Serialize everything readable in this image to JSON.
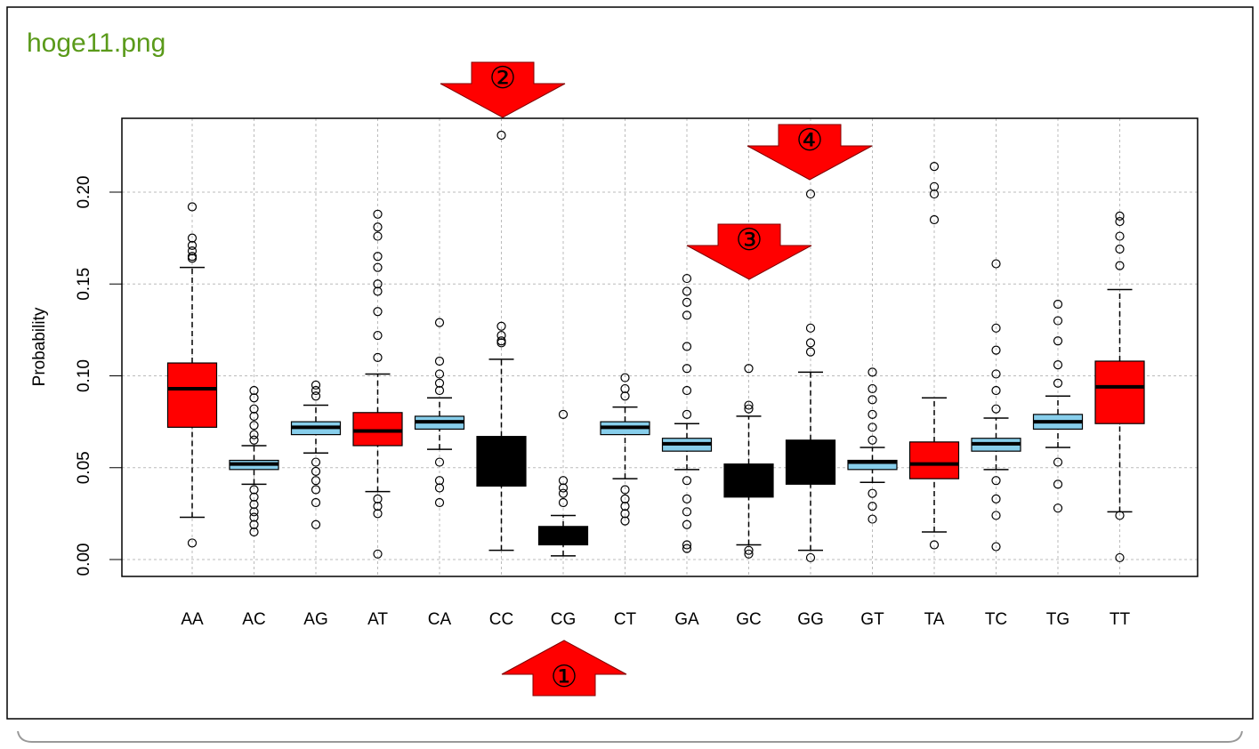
{
  "chart_data": {
    "type": "boxplot",
    "title": "hoge11.png",
    "y_label": "Probability",
    "categories": [
      "AA",
      "AC",
      "AG",
      "AT",
      "CA",
      "CC",
      "CG",
      "CT",
      "GA",
      "GC",
      "GG",
      "GT",
      "TA",
      "TC",
      "TG",
      "TT"
    ],
    "box_colors": [
      "#ff0000",
      "#87ceeb",
      "#87ceeb",
      "#ff0000",
      "#87ceeb",
      "#000000",
      "#000000",
      "#87ceeb",
      "#87ceeb",
      "#000000",
      "#000000",
      "#87ceeb",
      "#ff0000",
      "#87ceeb",
      "#87ceeb",
      "#ff0000"
    ],
    "stats": [
      {
        "low": 0.023,
        "q1": 0.072,
        "median": 0.093,
        "q3": 0.107,
        "high": 0.159,
        "outliers": [
          0.192,
          0.175,
          0.171,
          0.168,
          0.165,
          0.164,
          0.009
        ]
      },
      {
        "low": 0.041,
        "q1": 0.049,
        "median": 0.052,
        "q3": 0.054,
        "high": 0.062,
        "outliers": [
          0.092,
          0.088,
          0.082,
          0.078,
          0.073,
          0.068,
          0.065,
          0.038,
          0.034,
          0.03,
          0.026,
          0.023,
          0.019,
          0.015
        ]
      },
      {
        "low": 0.058,
        "q1": 0.068,
        "median": 0.072,
        "q3": 0.075,
        "high": 0.084,
        "outliers": [
          0.095,
          0.092,
          0.089,
          0.053,
          0.048,
          0.043,
          0.038,
          0.031,
          0.019
        ]
      },
      {
        "low": 0.037,
        "q1": 0.062,
        "median": 0.07,
        "q3": 0.08,
        "high": 0.101,
        "outliers": [
          0.11,
          0.122,
          0.135,
          0.146,
          0.15,
          0.159,
          0.165,
          0.176,
          0.181,
          0.188,
          0.033,
          0.029,
          0.025,
          0.003
        ]
      },
      {
        "low": 0.06,
        "q1": 0.071,
        "median": 0.075,
        "q3": 0.078,
        "high": 0.088,
        "outliers": [
          0.092,
          0.096,
          0.101,
          0.108,
          0.129,
          0.053,
          0.043,
          0.039,
          0.031
        ]
      },
      {
        "low": 0.005,
        "q1": 0.04,
        "median": 0.051,
        "q3": 0.067,
        "high": 0.109,
        "outliers": [
          0.127,
          0.122,
          0.119,
          0.118,
          0.231
        ]
      },
      {
        "low": 0.002,
        "q1": 0.008,
        "median": 0.012,
        "q3": 0.018,
        "high": 0.024,
        "outliers": [
          0.031,
          0.036,
          0.039,
          0.043,
          0.079
        ]
      },
      {
        "low": 0.044,
        "q1": 0.068,
        "median": 0.072,
        "q3": 0.075,
        "high": 0.083,
        "outliers": [
          0.089,
          0.093,
          0.099,
          0.038,
          0.033,
          0.029,
          0.025,
          0.021
        ]
      },
      {
        "low": 0.049,
        "q1": 0.059,
        "median": 0.063,
        "q3": 0.066,
        "high": 0.074,
        "outliers": [
          0.079,
          0.092,
          0.104,
          0.116,
          0.133,
          0.14,
          0.146,
          0.153,
          0.043,
          0.033,
          0.026,
          0.019,
          0.008,
          0.006
        ]
      },
      {
        "low": 0.008,
        "q1": 0.034,
        "median": 0.043,
        "q3": 0.052,
        "high": 0.078,
        "outliers": [
          0.084,
          0.082,
          0.104,
          0.005,
          0.003
        ]
      },
      {
        "low": 0.005,
        "q1": 0.041,
        "median": 0.053,
        "q3": 0.065,
        "high": 0.102,
        "outliers": [
          0.126,
          0.118,
          0.113,
          0.199,
          0.001
        ]
      },
      {
        "low": 0.042,
        "q1": 0.049,
        "median": 0.053,
        "q3": 0.054,
        "high": 0.061,
        "outliers": [
          0.065,
          0.072,
          0.079,
          0.087,
          0.093,
          0.102,
          0.036,
          0.029,
          0.022
        ]
      },
      {
        "low": 0.015,
        "q1": 0.044,
        "median": 0.052,
        "q3": 0.064,
        "high": 0.088,
        "outliers": [
          0.185,
          0.199,
          0.203,
          0.214,
          0.008
        ]
      },
      {
        "low": 0.049,
        "q1": 0.059,
        "median": 0.063,
        "q3": 0.066,
        "high": 0.077,
        "outliers": [
          0.082,
          0.092,
          0.101,
          0.114,
          0.126,
          0.161,
          0.043,
          0.033,
          0.024,
          0.007
        ]
      },
      {
        "low": 0.061,
        "q1": 0.071,
        "median": 0.075,
        "q3": 0.079,
        "high": 0.089,
        "outliers": [
          0.096,
          0.106,
          0.119,
          0.13,
          0.139,
          0.053,
          0.041,
          0.028
        ]
      },
      {
        "low": 0.026,
        "q1": 0.074,
        "median": 0.094,
        "q3": 0.108,
        "high": 0.147,
        "outliers": [
          0.16,
          0.169,
          0.176,
          0.184,
          0.187,
          0.024,
          0.001
        ]
      }
    ],
    "ylim": [
      -0.0092,
      0.2402
    ],
    "yticks": [
      {
        "value": 0,
        "label": "0.00"
      },
      {
        "value": 0.05,
        "label": "0.05"
      },
      {
        "value": 0.1,
        "label": "0.10"
      },
      {
        "value": 0.15,
        "label": "0.15"
      },
      {
        "value": 0.2,
        "label": "0.20"
      }
    ],
    "grid": true,
    "annotations": [
      "①",
      "②",
      "③",
      "④"
    ]
  }
}
